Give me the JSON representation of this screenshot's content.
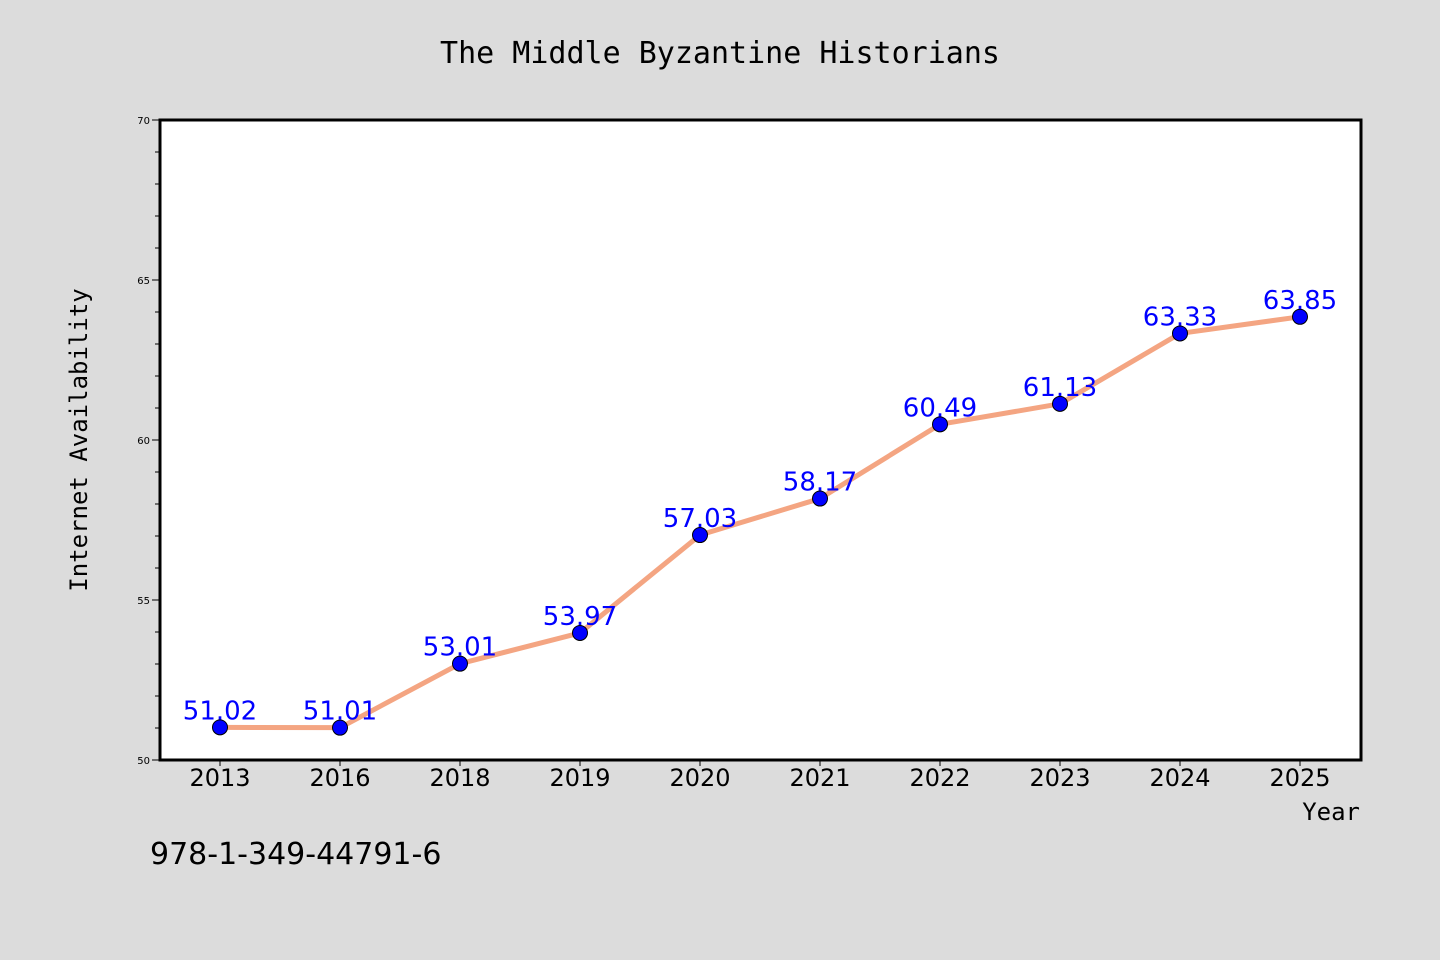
{
  "chart_data": {
    "type": "line",
    "title": "The Middle Byzantine Historians",
    "xlabel": "Year",
    "ylabel": "Internet Availability",
    "categories": [
      "2013",
      "2016",
      "2018",
      "2019",
      "2020",
      "2021",
      "2022",
      "2023",
      "2024",
      "2025"
    ],
    "values": [
      51.02,
      51.01,
      53.01,
      53.97,
      57.03,
      58.17,
      60.49,
      61.13,
      63.33,
      63.85
    ],
    "data_labels": [
      "51.02",
      "51.01",
      "53.01",
      "53.97",
      "57.03",
      "58.17",
      "60.49",
      "61.13",
      "63.33",
      "63.85"
    ],
    "ylim": [
      50,
      70
    ],
    "yticks": [
      "50",
      "55",
      "60",
      "65",
      "70"
    ],
    "grid": false,
    "legend": "none",
    "colors": {
      "background": "#dcdcdc",
      "plot_background": "#ffffff",
      "line": "#f4a582",
      "marker": "#0000ff",
      "data_label": "#0000ff",
      "axis": "#000000"
    }
  },
  "caption": "978-1-349-44791-6"
}
